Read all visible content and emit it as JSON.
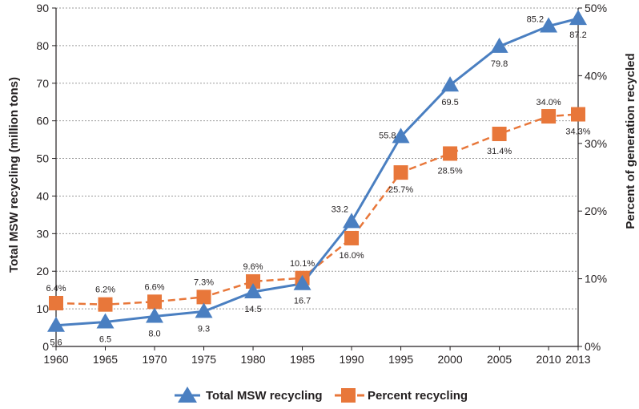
{
  "chart_data": {
    "type": "line",
    "x": [
      1960,
      1965,
      1970,
      1975,
      1980,
      1985,
      1990,
      1995,
      2000,
      2005,
      2010,
      2013
    ],
    "xticks": [
      "1960",
      "1965",
      "1970",
      "1975",
      "1980",
      "1985",
      "1990",
      "1995",
      "2000",
      "2005",
      "2010",
      "2013"
    ],
    "ylabel": "Total MSW recycling (million tons)",
    "y2label": "Percent of generation recycled",
    "ylim": [
      0,
      90
    ],
    "y2lim": [
      0,
      50
    ],
    "yticks": [
      "0",
      "10",
      "20",
      "30",
      "40",
      "50",
      "60",
      "70",
      "80",
      "90"
    ],
    "y2ticks": [
      "0%",
      "10%",
      "20%",
      "30%",
      "40%",
      "50%"
    ],
    "grid": "horizontal dotted",
    "legend_position": "bottom-center",
    "series": [
      {
        "name": "Total MSW recycling",
        "axis": "left",
        "style": "solid line, triangle markers",
        "color": "#4a7fc1",
        "values": [
          5.6,
          6.5,
          8.0,
          9.3,
          14.5,
          16.7,
          33.2,
          55.8,
          69.5,
          79.8,
          85.2,
          87.2
        ],
        "labels": [
          "5.6",
          "6.5",
          "8.0",
          "9.3",
          "14.5",
          "16.7",
          "33.2",
          "55.8",
          "69.5",
          "79.8",
          "85.2",
          "87.2"
        ]
      },
      {
        "name": "Percent recycling",
        "axis": "right",
        "style": "dashed line, square markers",
        "color": "#e8773a",
        "values": [
          6.4,
          6.2,
          6.6,
          7.3,
          9.6,
          10.1,
          16.0,
          25.7,
          28.5,
          31.4,
          34.0,
          34.3
        ],
        "labels": [
          "6.4%",
          "6.2%",
          "6.6%",
          "7.3%",
          "9.6%",
          "10.1%",
          "16.0%",
          "25.7%",
          "28.5%",
          "31.4%",
          "34.0%",
          "34.3%"
        ]
      }
    ]
  }
}
